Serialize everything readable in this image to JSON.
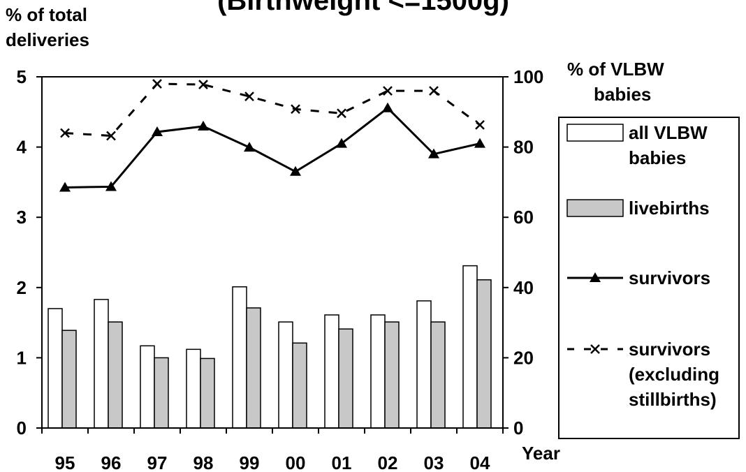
{
  "chart_data": {
    "type": "bar",
    "title": "(Birthweight <=1500g)",
    "xlabel": "Year",
    "ylabel_left": [
      "% of total",
      "deliveries"
    ],
    "ylabel_right": [
      "% of VLBW",
      "babies"
    ],
    "categories": [
      "95",
      "96",
      "97",
      "98",
      "99",
      "00",
      "01",
      "02",
      "03",
      "04"
    ],
    "ylim_left": [
      0,
      5
    ],
    "yticks_left": [
      0,
      1,
      2,
      3,
      4,
      5
    ],
    "ylim_right": [
      0,
      100
    ],
    "yticks_right": [
      0,
      20,
      40,
      60,
      80,
      100
    ],
    "series": [
      {
        "name": "all VLBW babies",
        "kind": "bar",
        "axis": "left",
        "color": "#ffffff",
        "legend_lines": [
          "all VLBW",
          "babies"
        ],
        "values": [
          1.7,
          1.83,
          1.17,
          1.12,
          2.01,
          1.51,
          1.61,
          1.61,
          1.81,
          2.31
        ]
      },
      {
        "name": "livebirths",
        "kind": "bar",
        "axis": "left",
        "color": "#c8c8c8",
        "legend_lines": [
          "livebirths"
        ],
        "values": [
          1.39,
          1.51,
          1.0,
          0.99,
          1.71,
          1.21,
          1.41,
          1.51,
          1.51,
          2.11
        ]
      },
      {
        "name": "survivors",
        "kind": "line",
        "axis": "right",
        "color": "#000000",
        "style": "solid",
        "marker": "triangle",
        "legend_lines": [
          "survivors"
        ],
        "values": [
          68.5,
          68.7,
          84.3,
          85.9,
          79.9,
          73.0,
          81.0,
          91.1,
          78.0,
          81.0
        ]
      },
      {
        "name": "survivors (excluding stillbirths)",
        "kind": "line",
        "axis": "right",
        "color": "#000000",
        "style": "dashed",
        "marker": "x",
        "legend_lines": [
          "survivors",
          "(excluding",
          "stillbirths)"
        ],
        "values": [
          84.0,
          83.2,
          98.0,
          97.8,
          94.4,
          90.8,
          89.6,
          96.0,
          96.0,
          86.3
        ]
      }
    ],
    "grid": false,
    "legend_position": "right"
  }
}
